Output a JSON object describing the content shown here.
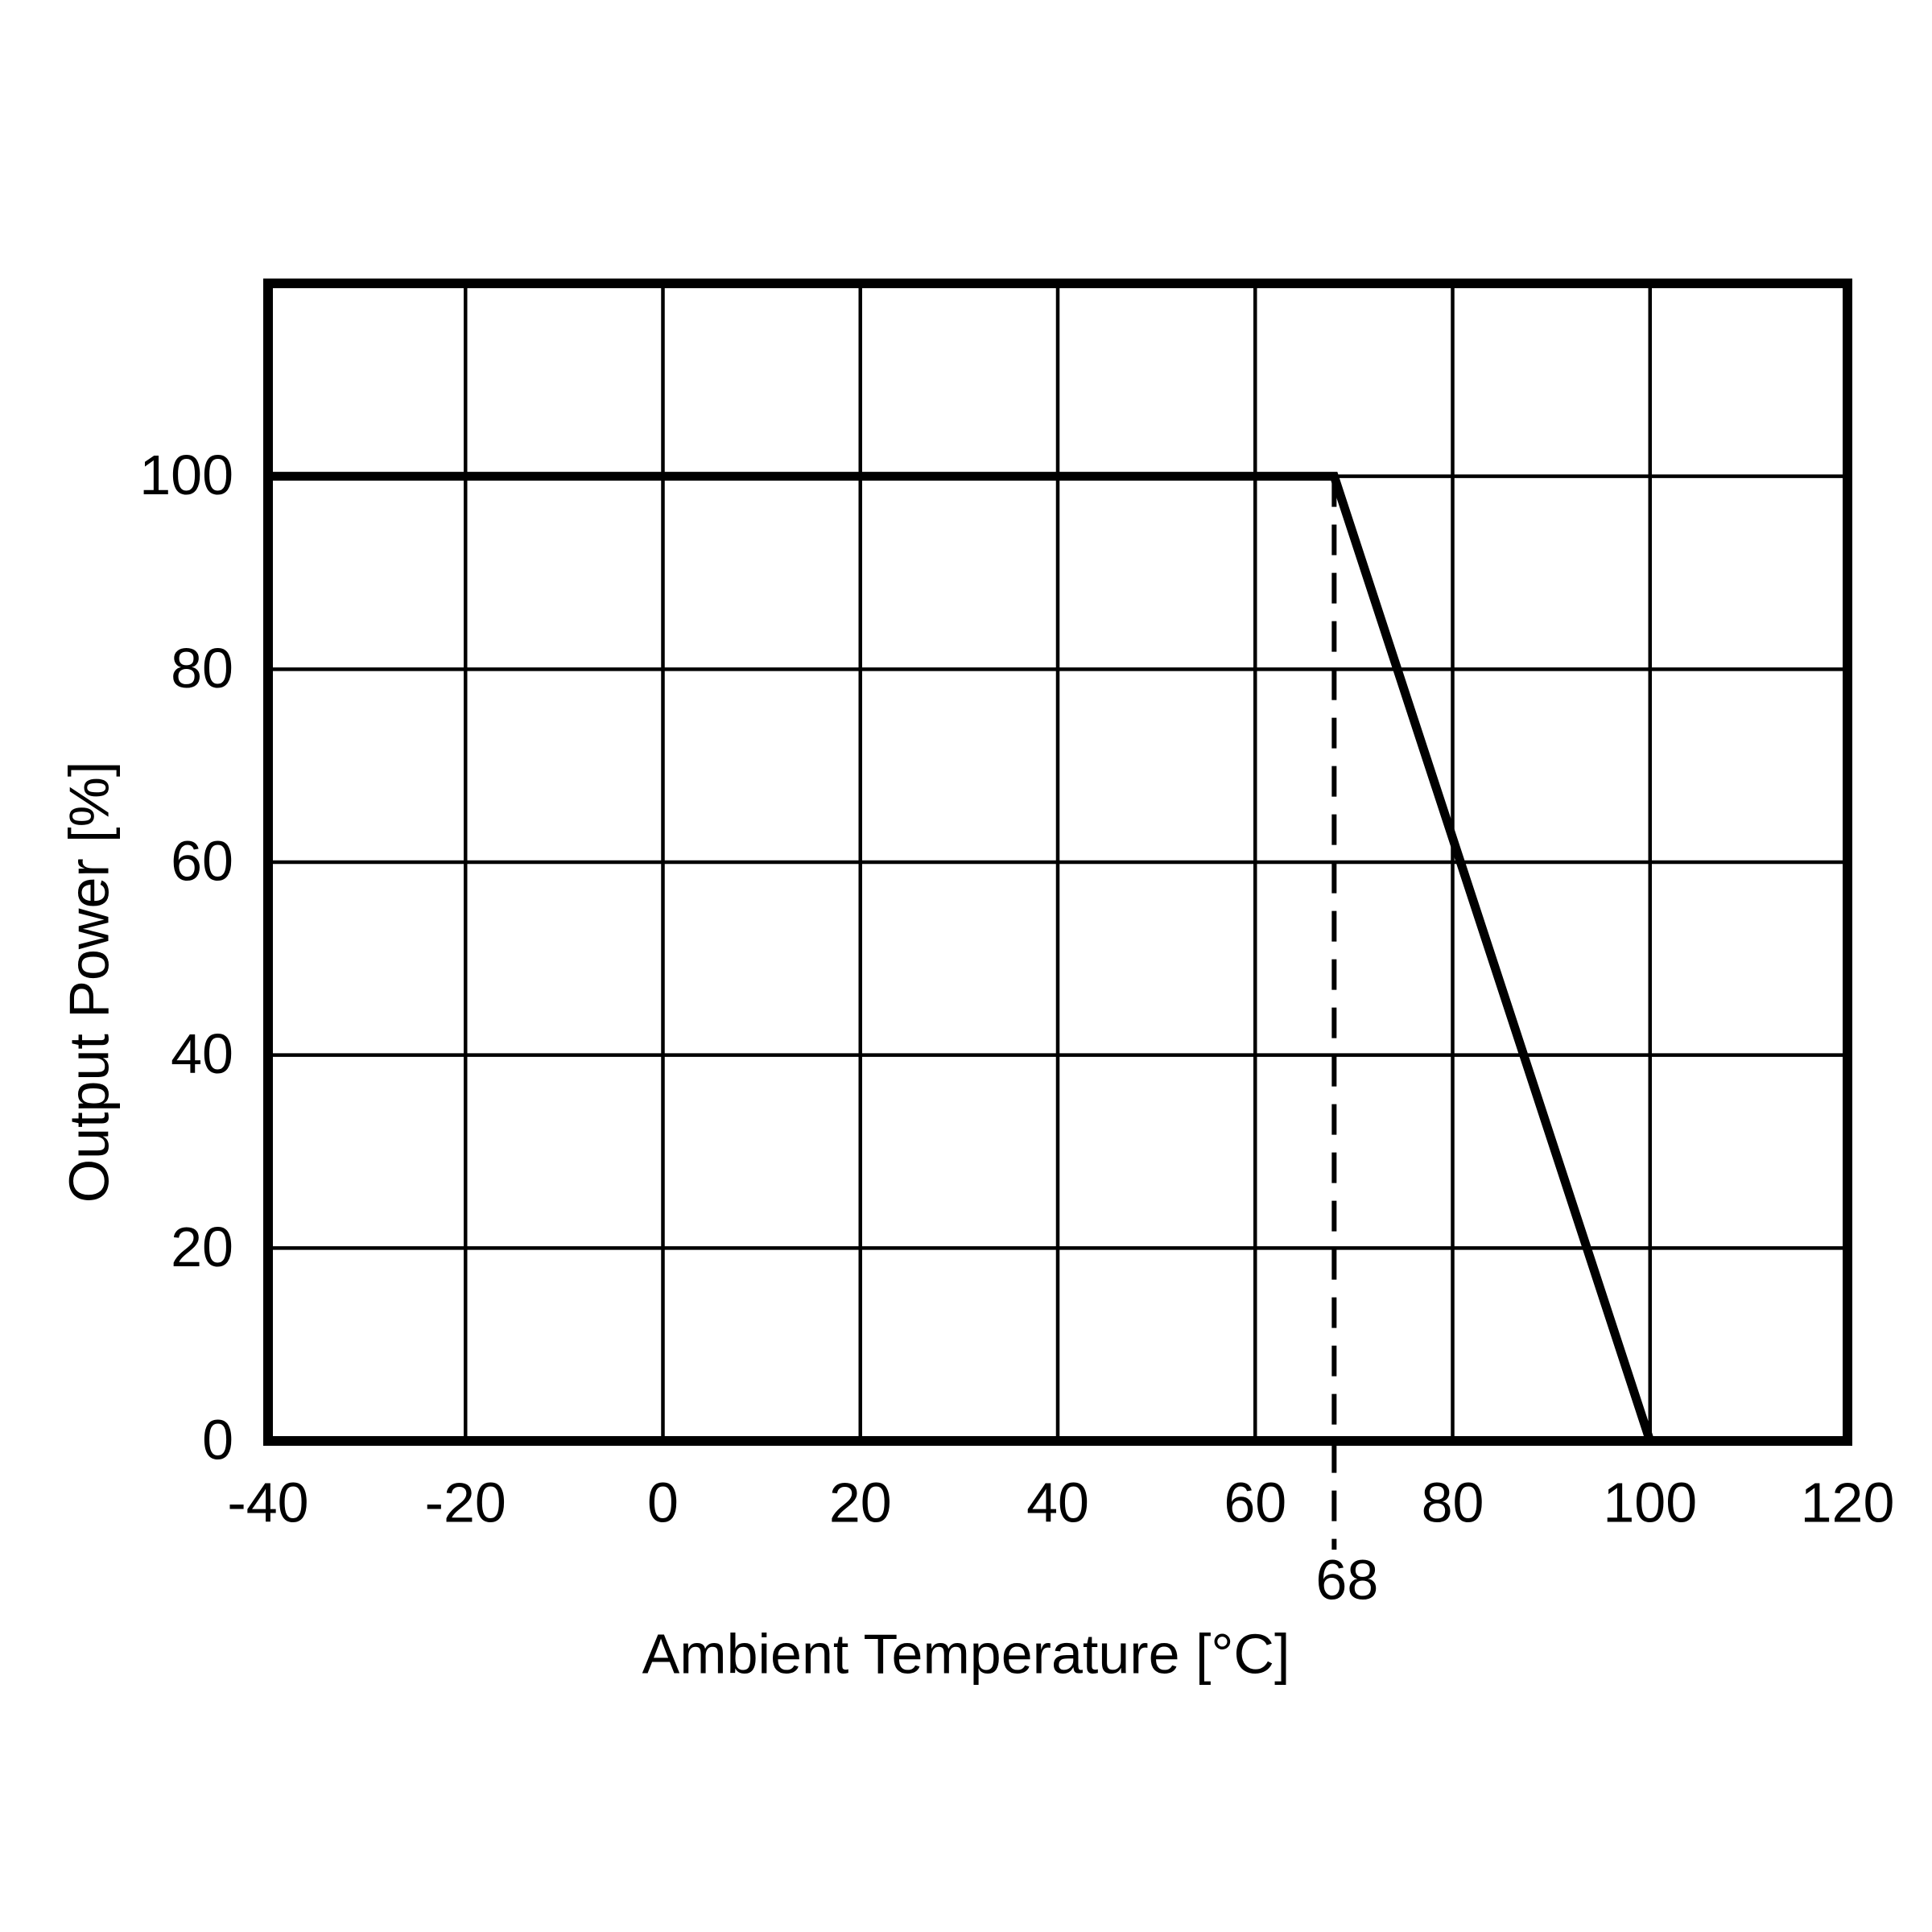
{
  "chart_data": {
    "type": "line",
    "x_label": "Ambient Temperature [°C]",
    "y_label": "Output Power [%]",
    "series": [
      {
        "x": [
          -40,
          68,
          100
        ],
        "values": [
          100,
          100,
          0
        ],
        "color": "#000000"
      }
    ],
    "vlines": [
      68
    ],
    "xlim": [
      -40,
      120
    ],
    "xticks": [
      -40,
      -20,
      0,
      20,
      40,
      60,
      80,
      100,
      120
    ],
    "ylim": [
      0,
      120
    ],
    "yticks": [
      0,
      20,
      40,
      60,
      80,
      100
    ],
    "grid": true
  }
}
